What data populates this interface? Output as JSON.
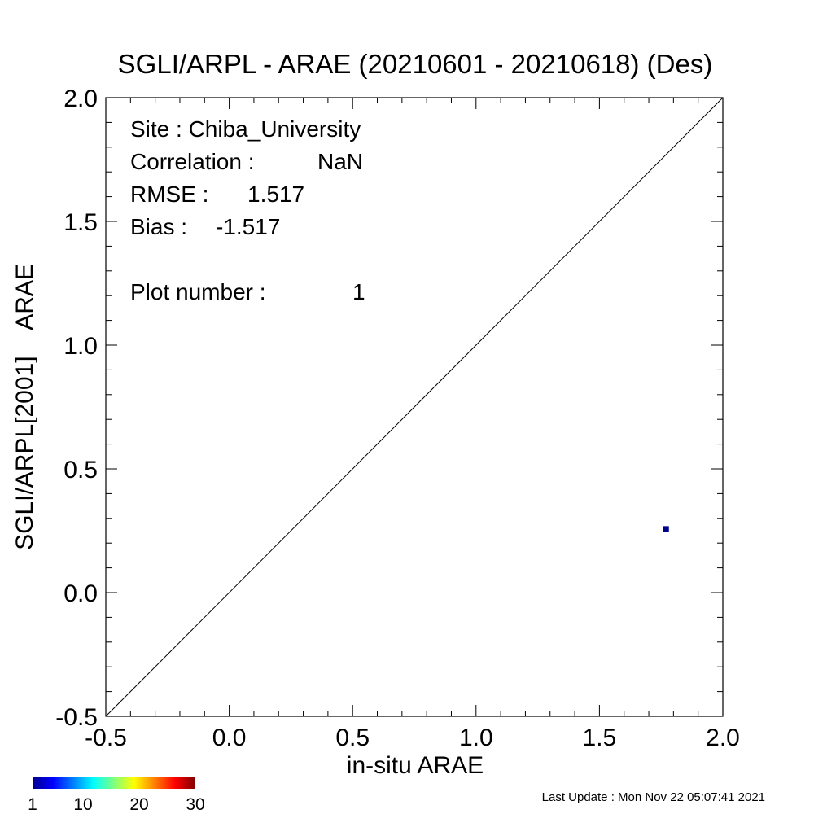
{
  "chart_data": {
    "type": "scatter",
    "title": "SGLI/ARPL - ARAE (20210601 - 20210618) (Des)",
    "xlabel": "in-situ ARAE",
    "ylabel": "SGLI/ARPL[2001]    ARAE",
    "xlim": [
      -0.5,
      2.0
    ],
    "ylim": [
      -0.5,
      2.0
    ],
    "x_ticks": [
      "-0.5",
      "0.0",
      "0.5",
      "1.0",
      "1.5",
      "2.0"
    ],
    "y_ticks": [
      "-0.5",
      "0.0",
      "0.5",
      "1.0",
      "1.5",
      "2.0"
    ],
    "reference_line": "1:1",
    "grid": false,
    "points": [
      {
        "x": 1.77,
        "y": 0.257,
        "count": 1,
        "color": "#00008f"
      }
    ],
    "stats": {
      "site": "Site : Chiba_University",
      "correlation_label": "Correlation :",
      "correlation_value": "NaN",
      "rmse_label": "RMSE :",
      "rmse_value": "1.517",
      "bias_label": "Bias :",
      "bias_value": "-1.517",
      "plot_number_label": "Plot number :",
      "plot_number_value": "1"
    },
    "colorbar": {
      "ticks": [
        "1",
        "10",
        "20",
        "30"
      ],
      "min": 1,
      "max": 30,
      "colormap": "jet"
    }
  },
  "footer": {
    "last_update": "Last Update : Mon Nov 22 05:07:41 2021"
  }
}
